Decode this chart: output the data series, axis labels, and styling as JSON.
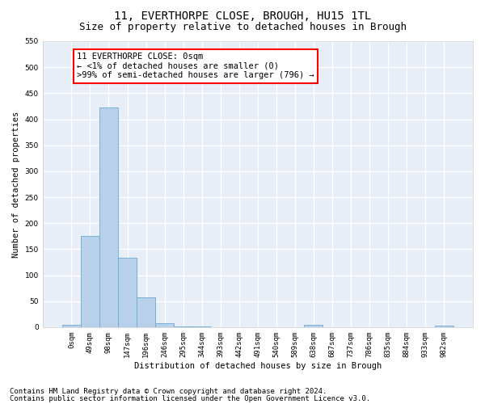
{
  "title_line1": "11, EVERTHORPE CLOSE, BROUGH, HU15 1TL",
  "title_line2": "Size of property relative to detached houses in Brough",
  "xlabel": "Distribution of detached houses by size in Brough",
  "ylabel": "Number of detached properties",
  "bar_color": "#b8d0ea",
  "bar_edge_color": "#6aaad4",
  "categories": [
    "0sqm",
    "49sqm",
    "98sqm",
    "147sqm",
    "196sqm",
    "246sqm",
    "295sqm",
    "344sqm",
    "393sqm",
    "442sqm",
    "491sqm",
    "540sqm",
    "589sqm",
    "638sqm",
    "687sqm",
    "737sqm",
    "786sqm",
    "835sqm",
    "884sqm",
    "933sqm",
    "982sqm"
  ],
  "values": [
    5,
    175,
    422,
    133,
    58,
    8,
    2,
    2,
    0,
    0,
    0,
    0,
    0,
    5,
    0,
    0,
    0,
    0,
    0,
    0,
    3
  ],
  "ylim": [
    0,
    550
  ],
  "yticks": [
    0,
    50,
    100,
    150,
    200,
    250,
    300,
    350,
    400,
    450,
    500,
    550
  ],
  "annotation_box_text": "11 EVERTHORPE CLOSE: 0sqm\n← <1% of detached houses are smaller (0)\n>99% of semi-detached houses are larger (796) →",
  "footnote1": "Contains HM Land Registry data © Crown copyright and database right 2024.",
  "footnote2": "Contains public sector information licensed under the Open Government Licence v3.0.",
  "background_color": "#e8eef8",
  "grid_color": "#ffffff",
  "title_fontsize": 10,
  "subtitle_fontsize": 9,
  "axis_label_fontsize": 7.5,
  "tick_fontsize": 6.5,
  "annotation_fontsize": 7.5,
  "footnote_fontsize": 6.5,
  "ylabel_fontsize": 7.5
}
